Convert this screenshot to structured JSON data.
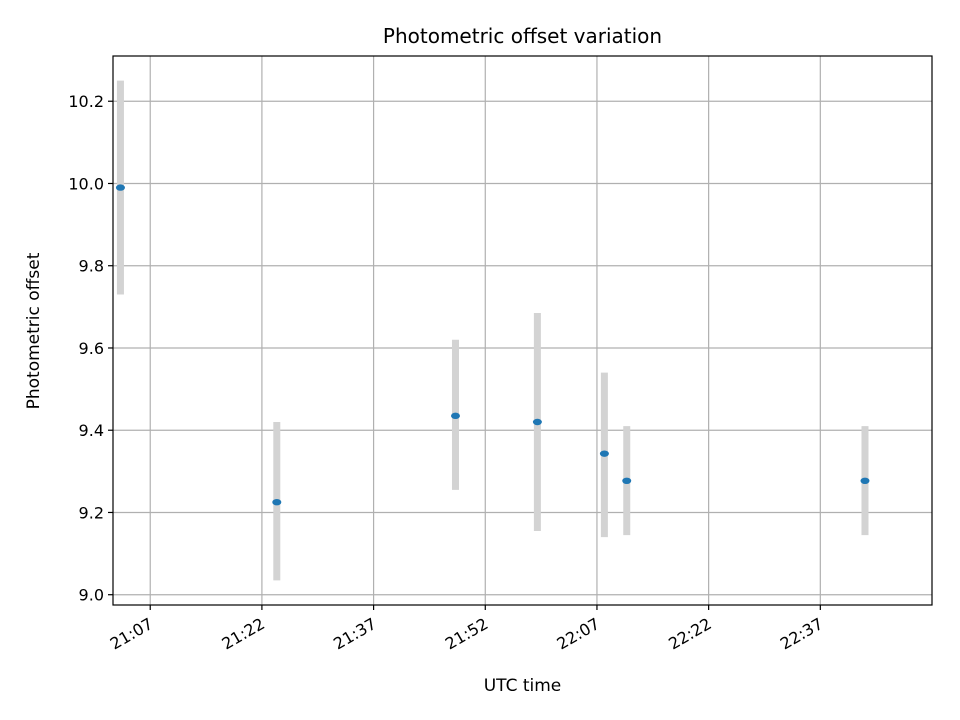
{
  "chart_data": {
    "type": "scatter",
    "title": "Photometric offset variation",
    "xlabel": "UTC time",
    "ylabel": "Photometric offset",
    "xlim": [
      "21:02:00",
      "22:52:00"
    ],
    "ylim": [
      8.975,
      10.31
    ],
    "xticks": [
      "21:07",
      "21:22",
      "21:37",
      "21:52",
      "22:07",
      "22:22",
      "22:37"
    ],
    "yticks": [
      "9.0",
      "9.2",
      "9.4",
      "9.6",
      "9.8",
      "10.0",
      "10.2"
    ],
    "grid": true,
    "marker_color": "#1f77b4",
    "errorbar_color": "#d3d3d3",
    "points": [
      {
        "x": "21:03",
        "y": 9.99,
        "low": 9.73,
        "high": 10.25
      },
      {
        "x": "21:24",
        "y": 9.225,
        "low": 9.035,
        "high": 9.42
      },
      {
        "x": "21:48",
        "y": 9.435,
        "low": 9.255,
        "high": 9.62
      },
      {
        "x": "21:59",
        "y": 9.42,
        "low": 9.155,
        "high": 9.685
      },
      {
        "x": "22:08",
        "y": 9.343,
        "low": 9.14,
        "high": 9.54
      },
      {
        "x": "22:11",
        "y": 9.277,
        "low": 9.145,
        "high": 9.41
      },
      {
        "x": "22:43",
        "y": 9.277,
        "low": 9.145,
        "high": 9.41
      }
    ]
  }
}
